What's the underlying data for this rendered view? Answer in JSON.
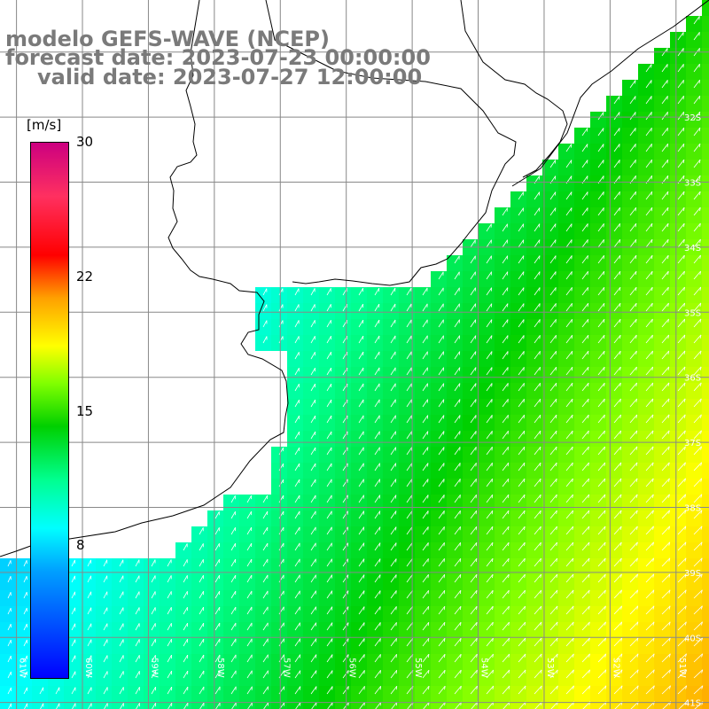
{
  "header": {
    "line1": "modelo GEFS-WAVE (NCEP)",
    "line2": "forecast date: 2023-07-23 00:00:00",
    "line3": "valid date: 2023-07-27 12:00:00"
  },
  "colorbar": {
    "unit": "[m/s]",
    "ticks": [
      {
        "label": "30",
        "value": 30
      },
      {
        "label": "22",
        "value": 22
      },
      {
        "label": "15",
        "value": 15
      },
      {
        "label": "8",
        "value": 8
      }
    ],
    "min": 0,
    "max": 30,
    "stops": [
      "#0000ff",
      "#00a0ff",
      "#00ffff",
      "#00ff90",
      "#00d000",
      "#80ff00",
      "#ffff00",
      "#ffa000",
      "#ff0000",
      "#cc0080"
    ]
  },
  "map": {
    "lon_labels": [
      "61W",
      "60W",
      "59W",
      "58W",
      "57W",
      "56W",
      "55W",
      "54W",
      "53W",
      "52W",
      "51W"
    ],
    "lat_labels": [
      "32S",
      "33S",
      "34S",
      "35S",
      "36S",
      "37S",
      "38S",
      "39S",
      "40S",
      "41S"
    ],
    "lon_range": [
      -61.25,
      -50.5
    ],
    "lat_range": [
      -41.1,
      -30.2
    ],
    "land_color": "#ffffff",
    "grid_color": "#888888",
    "coast_color": "#000000",
    "arrow_color": "#ffffff"
  }
}
